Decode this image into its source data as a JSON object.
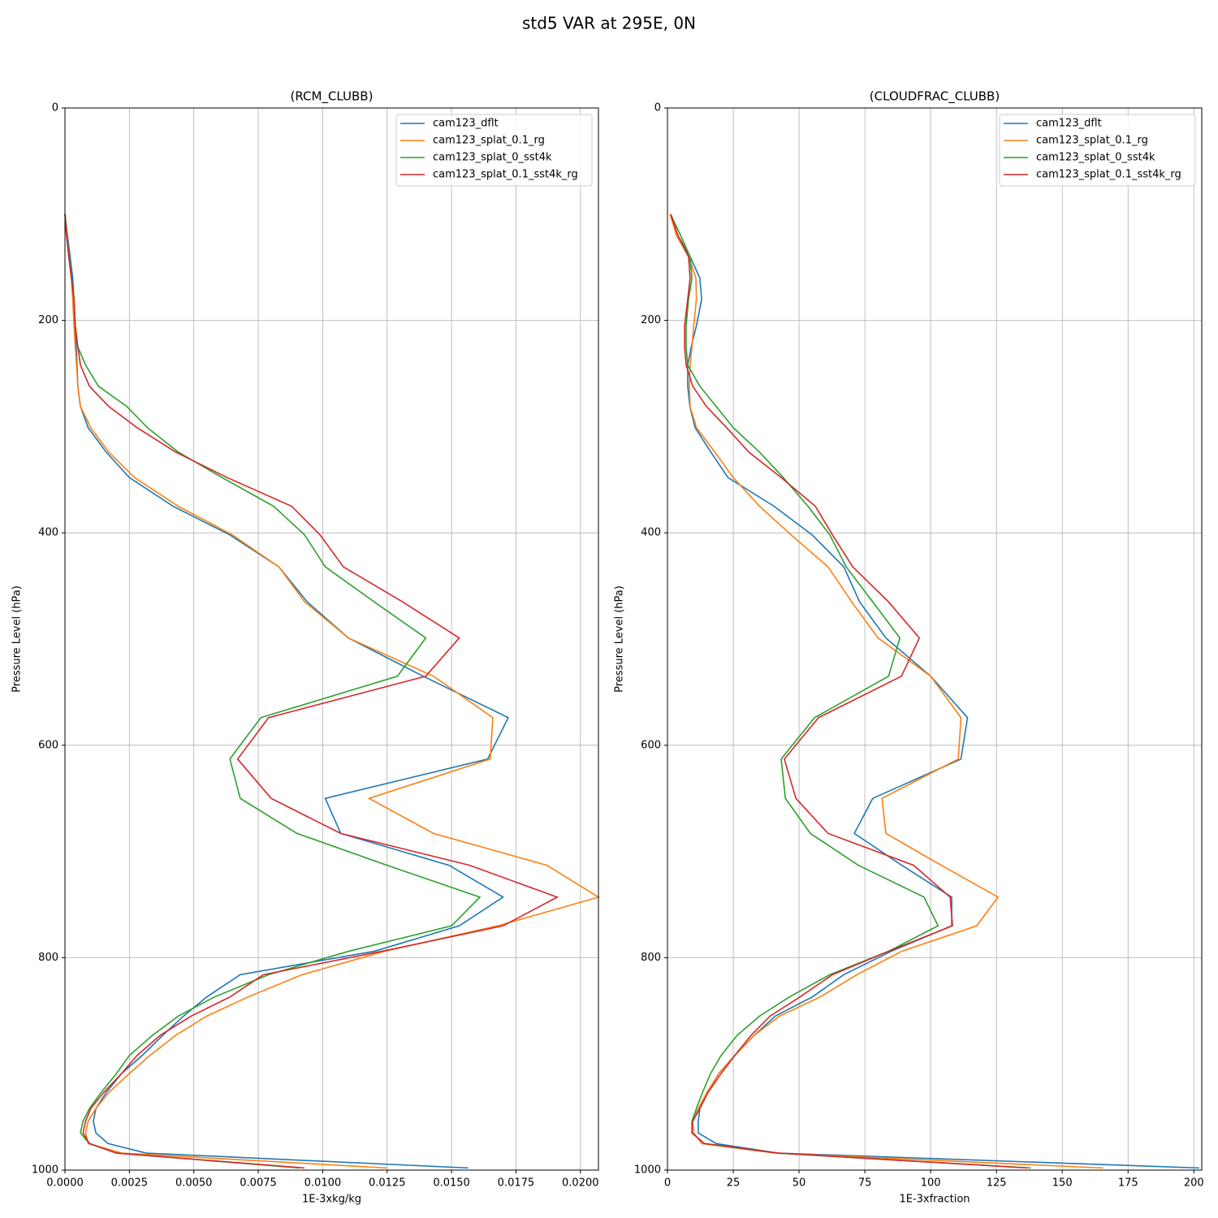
{
  "title": "std5 VAR at 295E, 0N",
  "chart_data": [
    {
      "type": "line",
      "title": "(RCM_CLUBB)",
      "xlabel": "1E-3xkg/kg",
      "ylabel": "Pressure Level (hPa)",
      "y": [
        100,
        120,
        140,
        160,
        180,
        205,
        225,
        242,
        262,
        281,
        301,
        324,
        348,
        375,
        402,
        432,
        465,
        499,
        535,
        574,
        613,
        650,
        683,
        713,
        743,
        770,
        794,
        816,
        837,
        855,
        873,
        892,
        909,
        927,
        942,
        954,
        965,
        975,
        984,
        998
      ],
      "series": [
        {
          "name": "cam123_dflt",
          "color": "#1f77b4",
          "values": [
            0,
            0.0001,
            0.0002,
            0.0003,
            0.00035,
            0.0004,
            0.00044,
            0.00047,
            0.0005,
            0.0006,
            0.0009,
            0.0016,
            0.0025,
            0.0042,
            0.0064,
            0.0083,
            0.0094,
            0.011,
            0.0139,
            0.0172,
            0.0164,
            0.0101,
            0.0107,
            0.0149,
            0.017,
            0.0153,
            0.012,
            0.0068,
            0.0055,
            0.0046,
            0.0038,
            0.003,
            0.0022,
            0.0016,
            0.0012,
            0.0011,
            0.0012,
            0.00167,
            0.00315,
            0.01565
          ]
        },
        {
          "name": "cam123_splat_0.1_rg",
          "color": "#ff7f0e",
          "values": [
            0,
            8e-05,
            0.00015,
            0.00025,
            0.0003,
            0.00035,
            0.0004,
            0.00045,
            0.0005,
            0.0006,
            0.001,
            0.0017,
            0.0027,
            0.0044,
            0.0065,
            0.0083,
            0.0093,
            0.011,
            0.0143,
            0.0166,
            0.0165,
            0.0118,
            0.0143,
            0.0187,
            0.0207,
            0.0168,
            0.0124,
            0.0092,
            0.0071,
            0.0055,
            0.0043,
            0.0033,
            0.0025,
            0.0017,
            0.0012,
            0.0009,
            0.0008,
            0.0009,
            0.0022,
            0.0125
          ]
        },
        {
          "name": "cam123_splat_0_sst4k",
          "color": "#2ca02c",
          "values": [
            0,
            6e-05,
            0.00015,
            0.00025,
            0.00035,
            0.0004,
            0.0005,
            0.0008,
            0.0013,
            0.0024,
            0.0032,
            0.0044,
            0.0061,
            0.0081,
            0.0093,
            0.0101,
            0.012,
            0.014,
            0.0129,
            0.0076,
            0.0064,
            0.0068,
            0.009,
            0.0125,
            0.0161,
            0.015,
            0.011,
            0.0079,
            0.0058,
            0.0044,
            0.0034,
            0.0025,
            0.002,
            0.0014,
            0.00095,
            0.0007,
            0.0006,
            0.00095,
            0.002,
            0.0091
          ]
        },
        {
          "name": "cam123_splat_0.1_sst4k_rg",
          "color": "#d62728",
          "values": [
            0,
            6e-05,
            0.00015,
            0.00025,
            0.00035,
            0.0004,
            0.0005,
            0.0006,
            0.00095,
            0.0017,
            0.0028,
            0.0043,
            0.0063,
            0.0088,
            0.0099,
            0.0108,
            0.0131,
            0.0153,
            0.014,
            0.0079,
            0.0067,
            0.008,
            0.0107,
            0.0157,
            0.0191,
            0.017,
            0.0123,
            0.0077,
            0.0064,
            0.0049,
            0.0037,
            0.0028,
            0.0022,
            0.0015,
            0.001,
            0.0008,
            0.0007,
            0.00095,
            0.002,
            0.0093
          ]
        }
      ],
      "xlim": [
        0,
        0.0207
      ],
      "ylim": [
        1000,
        0
      ],
      "xticks": [
        {
          "value": 0,
          "label": "0.0000"
        },
        {
          "value": 0.0025,
          "label": "0.0025"
        },
        {
          "value": 0.005,
          "label": "0.0050"
        },
        {
          "value": 0.0075,
          "label": "0.0075"
        },
        {
          "value": 0.01,
          "label": "0.0100"
        },
        {
          "value": 0.0125,
          "label": "0.0125"
        },
        {
          "value": 0.015,
          "label": "0.0150"
        },
        {
          "value": 0.0175,
          "label": "0.0175"
        },
        {
          "value": 0.02,
          "label": "0.0200"
        }
      ],
      "yticks": [
        0,
        200,
        400,
        600,
        800,
        1000
      ],
      "grid": true,
      "legend": "upper right"
    },
    {
      "type": "line",
      "title": "(CLOUDFRAC_CLUBB)",
      "xlabel": "1E-3xfraction",
      "ylabel": "Pressure Level (hPa)",
      "y": [
        100,
        120,
        140,
        160,
        180,
        205,
        225,
        242,
        262,
        281,
        301,
        324,
        348,
        375,
        402,
        432,
        465,
        499,
        535,
        574,
        613,
        650,
        683,
        713,
        743,
        770,
        794,
        816,
        837,
        855,
        873,
        892,
        909,
        927,
        942,
        954,
        965,
        975,
        984,
        998
      ],
      "series": [
        {
          "name": "cam123_dflt",
          "color": "#1f77b4",
          "values": [
            1.2,
            4,
            8.6,
            12.3,
            13,
            11,
            9,
            7.7,
            7.7,
            8.5,
            10.5,
            16.5,
            23,
            40.5,
            55,
            67,
            73,
            83,
            100,
            114,
            111.5,
            78,
            71,
            89,
            108,
            108,
            85,
            67,
            55,
            41,
            33,
            25.6,
            19.5,
            15,
            12.3,
            11.7,
            11.7,
            18.5,
            42,
            202
          ]
        },
        {
          "name": "cam123_splat_0.1_rg",
          "color": "#ff7f0e",
          "values": [
            1,
            3.4,
            8,
            10.8,
            11,
            10,
            9.3,
            8.6,
            8.3,
            8.6,
            11,
            18,
            25,
            35,
            47,
            61,
            70,
            80,
            100,
            111.5,
            110.5,
            81.5,
            83,
            104,
            125.6,
            117.5,
            89,
            72,
            58,
            42.6,
            33,
            25.6,
            19.5,
            15,
            11.7,
            9.5,
            10,
            13,
            41,
            165.5
          ]
        },
        {
          "name": "cam123_splat_0_sst4k",
          "color": "#2ca02c",
          "values": [
            1.2,
            5,
            8.6,
            9.3,
            8,
            7.1,
            7.1,
            7.7,
            12.3,
            18.5,
            25,
            35,
            44,
            53.4,
            61.7,
            67.9,
            78,
            88.3,
            84,
            55.9,
            43.2,
            44.8,
            54.3,
            72.5,
            97.5,
            102.8,
            84,
            61.7,
            46.3,
            35,
            26.5,
            20.4,
            16.4,
            13.3,
            11,
            9.3,
            9.3,
            14,
            42,
            138
          ]
        },
        {
          "name": "cam123_splat_0.1_sst4k_rg",
          "color": "#d62728",
          "values": [
            1.2,
            4,
            8,
            8.6,
            7.7,
            6.5,
            6.5,
            7.1,
            9.6,
            14.8,
            22.5,
            30.9,
            43.2,
            56.2,
            62.7,
            70.4,
            84,
            95.7,
            88.9,
            57.4,
            44.4,
            48.8,
            61,
            93.5,
            107.4,
            108.3,
            84,
            62.7,
            50.3,
            39,
            31.8,
            25.6,
            20.4,
            15.4,
            12.3,
            9.6,
            9.3,
            14,
            42,
            136.7
          ]
        }
      ],
      "xlim": [
        0,
        203
      ],
      "ylim": [
        1000,
        0
      ],
      "xticks": [
        0,
        25,
        50,
        75,
        100,
        125,
        150,
        175,
        200
      ],
      "yticks": [
        0,
        200,
        400,
        600,
        800,
        1000
      ],
      "grid": true,
      "legend": "upper right"
    }
  ]
}
